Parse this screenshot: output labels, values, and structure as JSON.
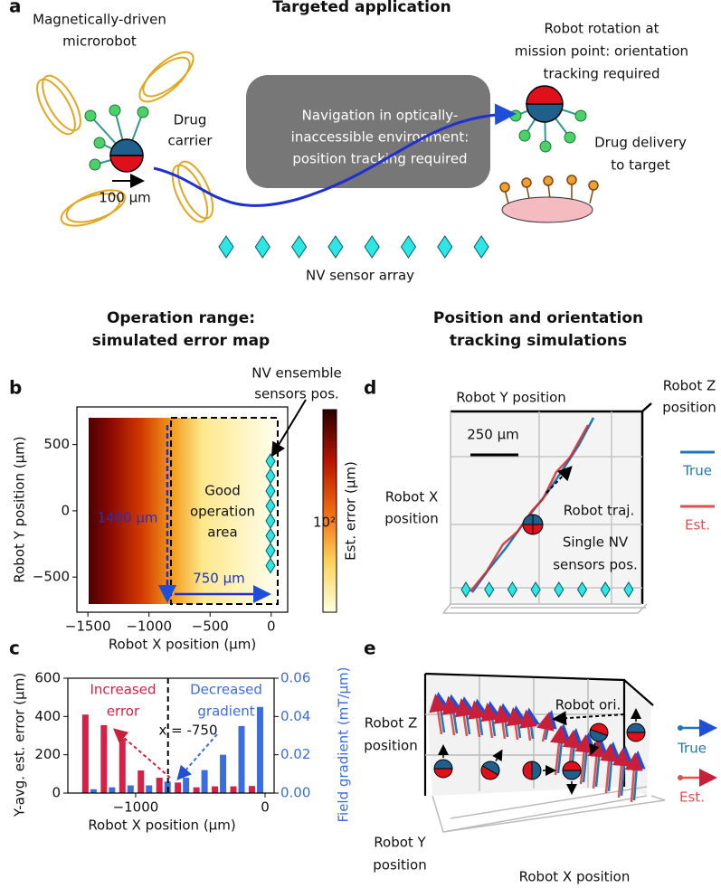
{
  "panel_a": {
    "letter": "a",
    "title": "Targeted application",
    "robot_label": [
      "Magnetically-driven",
      "microrobot"
    ],
    "carrier_label": [
      "Drug",
      "carrier"
    ],
    "scale_label": "100 μm",
    "navigation_label": [
      "Navigation in optically-",
      "inaccessible environment:",
      "position tracking required"
    ],
    "rotation_label": [
      "Robot rotation at",
      "mission point: orientation",
      "tracking required"
    ],
    "delivery_label": [
      "Drug delivery",
      "to target"
    ],
    "sensor_label": "NV sensor array"
  },
  "headings": {
    "left": [
      "Operation range:",
      "simulated error map"
    ],
    "right": [
      "Position and orientation",
      "tracking simulations"
    ]
  },
  "chart_data": [
    {
      "type": "heatmap",
      "letter": "b",
      "xlabel": "Robot X position (μm)",
      "ylabel": "Robot Y position (μm)",
      "colorbar_label": "Est. error (μm)",
      "colorbar_tick": "10²",
      "xlim": [
        -1590,
        135
      ],
      "ylim": [
        -765,
        784
      ],
      "xticks": [
        {
          "value": -1500,
          "label": "−1500"
        },
        {
          "value": -1000,
          "label": "−1000"
        },
        {
          "value": -500,
          "label": "−500"
        },
        0
      ],
      "yticks": [
        {
          "value": -500,
          "label": "−500"
        },
        0,
        500
      ],
      "annotations": {
        "sensors": [
          "NV ensemble",
          "sensors pos."
        ],
        "area": [
          "Good",
          "operation",
          "area"
        ],
        "full_width": "1400 μm",
        "good_width": "750 μm"
      }
    },
    {
      "type": "bar",
      "letter": "c",
      "xlabel": "Robot X position (μm)",
      "ylabel": "Y-avg. est. error (μm)",
      "y2label": "Field gradient (mT/μm)",
      "x": [
        -1357,
        -1214,
        -1071,
        -928,
        -785,
        -642,
        -499,
        -356,
        -213,
        -70
      ],
      "series": [
        {
          "name": "Increased error",
          "color": "#d62045",
          "values": [
            410,
            355,
            285,
            118,
            80,
            55,
            30,
            35,
            35,
            37
          ]
        },
        {
          "name": "Decreased gradient",
          "axis": "y2",
          "color": "#3a6ee0",
          "values": [
            0.002,
            0.003,
            0.004,
            0.004,
            0.006,
            0.008,
            0.012,
            0.02,
            0.035,
            0.045
          ]
        }
      ],
      "xlim": [
        -1524,
        70
      ],
      "xticks": [
        {
          "value": -1000,
          "label": "−1000"
        },
        0
      ],
      "ylim": [
        0,
        600
      ],
      "yticks": [
        0,
        200,
        400,
        600
      ],
      "y2lim": [
        0,
        0.06
      ],
      "y2ticks": [
        {
          "value": 0,
          "label": "0.00"
        },
        0.02,
        0.04,
        0.06
      ],
      "vline": -750,
      "vline_label": "x = -750",
      "series_labels": [
        [
          "Increased",
          "error"
        ],
        [
          "Decreased",
          "gradient"
        ]
      ]
    }
  ],
  "panel_d": {
    "letter": "d",
    "y_axis": "Robot Y position",
    "z_axis": [
      "Robot Z",
      "position"
    ],
    "x_axis": [
      "Robot X",
      "position"
    ],
    "scale": "250 μm",
    "trajectory": "Robot traj.",
    "sensors": [
      "Single NV",
      "sensors pos."
    ],
    "legend": [
      "True",
      "Est."
    ]
  },
  "panel_e": {
    "letter": "e",
    "orientation": "Robot ori.",
    "z_axis": [
      "Robot Z",
      "position"
    ],
    "y_axis": [
      "Robot Y",
      "position"
    ],
    "x_axis": "Robot X position",
    "legend": [
      "True",
      "Est."
    ]
  }
}
